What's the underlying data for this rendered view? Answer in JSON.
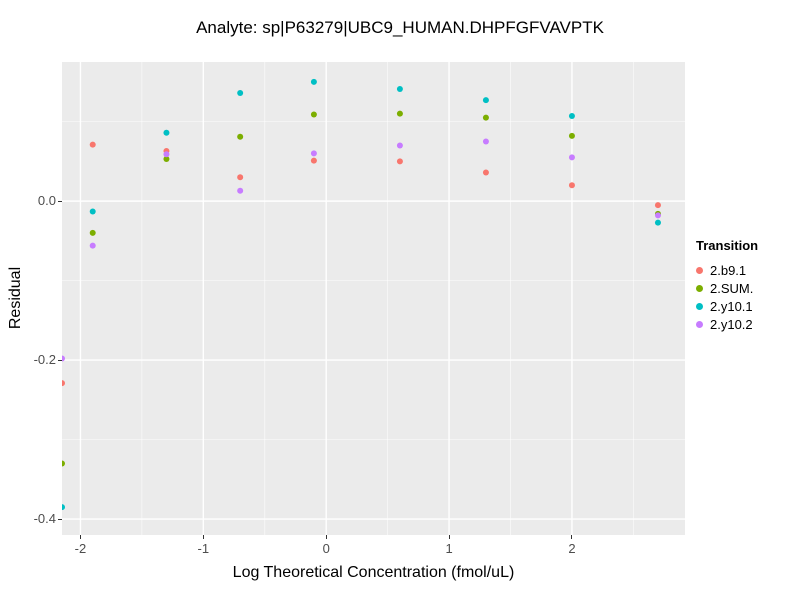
{
  "chart_data": {
    "type": "scatter",
    "title": "Analyte: sp|P63279|UBC9_HUMAN.DHPFGFVAVPTK",
    "xlabel": "Log Theoretical Concentration (fmol/uL)",
    "ylabel": "Residual",
    "xlim": [
      -2.15,
      2.92
    ],
    "ylim": [
      -0.42,
      0.175
    ],
    "x_ticks": [
      {
        "v": -2,
        "label": "-2"
      },
      {
        "v": -1,
        "label": "-1"
      },
      {
        "v": 0,
        "label": "0"
      },
      {
        "v": 1,
        "label": "1"
      },
      {
        "v": 2,
        "label": "2"
      }
    ],
    "y_ticks": [
      {
        "v": 0.0,
        "label": "0.0"
      },
      {
        "v": -0.2,
        "label": "-0.2"
      },
      {
        "v": -0.4,
        "label": "-0.4"
      }
    ],
    "x_minor_ticks": [
      -1.5,
      -0.5,
      0.5,
      1.5,
      2.5
    ],
    "y_minor_ticks": [
      0.1,
      -0.1,
      -0.3
    ],
    "grid": true,
    "legend": {
      "title": "Transition",
      "position": "right"
    },
    "colors": {
      "panel_bg": "#EBEBEB",
      "grid_major": "#FFFFFF",
      "grid_minor": "#FFFFFF"
    },
    "series": [
      {
        "name": "2.b9.1",
        "color": "#F8766D",
        "points": [
          [
            -2.15,
            -0.229
          ],
          [
            -1.9,
            0.071
          ],
          [
            -1.3,
            0.063
          ],
          [
            -0.7,
            0.03
          ],
          [
            -0.1,
            0.051
          ],
          [
            0.6,
            0.05
          ],
          [
            1.3,
            0.036
          ],
          [
            2.0,
            0.02
          ],
          [
            2.7,
            -0.005
          ]
        ]
      },
      {
        "name": "2.SUM.",
        "color": "#7CAE00",
        "points": [
          [
            -2.15,
            -0.33
          ],
          [
            -1.9,
            -0.04
          ],
          [
            -1.3,
            0.053
          ],
          [
            -0.7,
            0.081
          ],
          [
            -0.1,
            0.109
          ],
          [
            0.6,
            0.11
          ],
          [
            1.3,
            0.105
          ],
          [
            2.0,
            0.082
          ],
          [
            2.7,
            -0.016
          ]
        ]
      },
      {
        "name": "2.y10.1",
        "color": "#00BFC4",
        "points": [
          [
            -2.15,
            -0.385
          ],
          [
            -1.9,
            -0.013
          ],
          [
            -1.3,
            0.086
          ],
          [
            -0.7,
            0.136
          ],
          [
            -0.1,
            0.15
          ],
          [
            0.6,
            0.141
          ],
          [
            1.3,
            0.127
          ],
          [
            2.0,
            0.107
          ],
          [
            2.7,
            -0.027
          ]
        ]
      },
      {
        "name": "2.y10.2",
        "color": "#C77CFF",
        "points": [
          [
            -2.15,
            -0.198
          ],
          [
            -1.9,
            -0.056
          ],
          [
            -1.3,
            0.059
          ],
          [
            -0.7,
            0.013
          ],
          [
            -0.1,
            0.06
          ],
          [
            0.6,
            0.07
          ],
          [
            1.3,
            0.075
          ],
          [
            2.0,
            0.055
          ],
          [
            2.7,
            -0.018
          ]
        ]
      }
    ]
  }
}
